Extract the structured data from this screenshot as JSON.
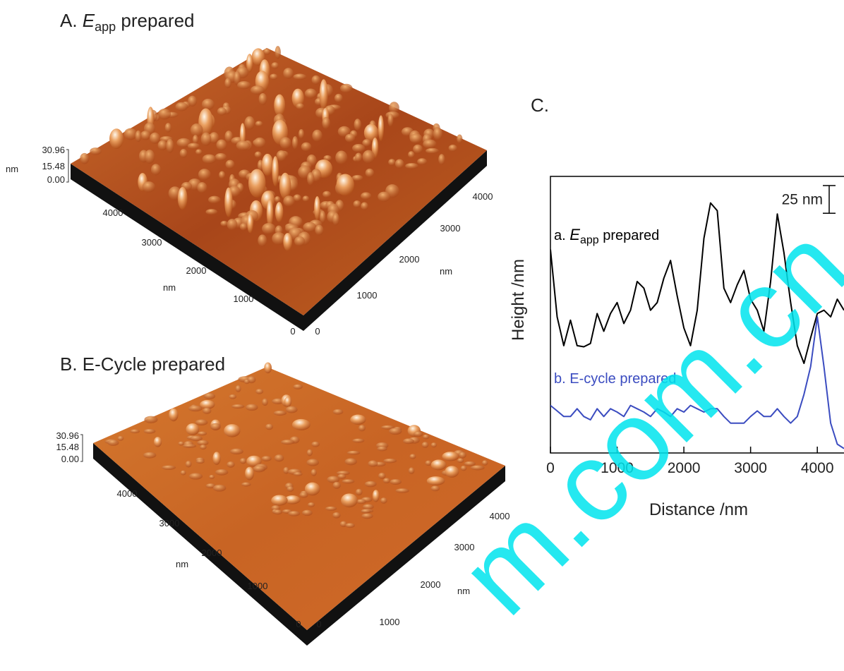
{
  "panels": {
    "A": {
      "title": {
        "prefix": "A. ",
        "var": "E",
        "sub": "app",
        "suffix": " prepared"
      },
      "z_ticks": [
        "30.96",
        "15.48",
        "0.00"
      ],
      "z_unit": "nm",
      "left_ticks": [
        "4000",
        "3000",
        "2000",
        "1000",
        "0"
      ],
      "left_unit": "nm",
      "right_ticks": [
        "0",
        "1000",
        "2000",
        "3000",
        "4000"
      ],
      "right_unit": "nm"
    },
    "B": {
      "title": "B. E-Cycle prepared",
      "z_ticks": [
        "30.96",
        "15.48",
        "0.00"
      ],
      "left_ticks": [
        "4000",
        "3000",
        "2000",
        "1000",
        "0"
      ],
      "left_unit": "nm",
      "right_ticks": [
        "0",
        "1000",
        "2000",
        "3000",
        "4000"
      ],
      "right_unit": "nm"
    }
  },
  "chart_data": {
    "type": "line",
    "title": "C.",
    "x_label": "Distance /nm",
    "y_label": "Height /nm",
    "x": [
      0,
      100,
      200,
      300,
      400,
      500,
      600,
      700,
      800,
      900,
      1000,
      1100,
      1200,
      1300,
      1400,
      1500,
      1600,
      1700,
      1800,
      1900,
      2000,
      2100,
      2200,
      2300,
      2400,
      2500,
      2600,
      2700,
      2800,
      2900,
      3000,
      3100,
      3200,
      3300,
      3400,
      3500,
      3600,
      3700,
      3800,
      3900,
      4000,
      4100,
      4200,
      4300,
      4400
    ],
    "xlim": [
      0,
      4400
    ],
    "xticks": [
      0,
      1000,
      2000,
      3000,
      4000
    ],
    "ylim": [
      0,
      250
    ],
    "series": [
      {
        "name_parts": {
          "prefix": "a. ",
          "var": "E",
          "sub": "app",
          "suffix": " prepared"
        },
        "color": "#000000",
        "values": [
          184,
          123,
          97,
          120,
          97,
          96,
          99,
          126,
          110,
          126,
          136,
          117,
          129,
          155,
          149,
          129,
          136,
          158,
          174,
          142,
          113,
          97,
          129,
          194,
          226,
          219,
          149,
          136,
          152,
          165,
          139,
          129,
          110,
          155,
          216,
          181,
          136,
          97,
          81,
          104,
          126,
          129,
          123,
          139,
          129
        ]
      },
      {
        "name": "b. E-cycle prepared",
        "color": "#3b4cc0",
        "values": [
          43,
          38,
          33,
          33,
          40,
          33,
          30,
          40,
          33,
          40,
          37,
          33,
          43,
          40,
          37,
          33,
          40,
          37,
          33,
          40,
          37,
          43,
          40,
          37,
          40,
          40,
          33,
          27,
          27,
          27,
          33,
          38,
          33,
          33,
          40,
          33,
          27,
          33,
          53,
          78,
          123,
          78,
          27,
          8,
          4
        ]
      }
    ],
    "scale_bar": {
      "value": 25,
      "label": "25 nm"
    }
  },
  "watermark": "m.com.cn"
}
